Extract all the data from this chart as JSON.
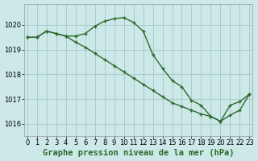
{
  "series1": {
    "x": [
      0,
      1,
      2,
      3,
      4,
      5,
      6,
      7,
      8,
      9,
      10,
      11,
      12,
      13,
      14,
      15,
      16,
      17,
      18,
      19,
      20,
      21,
      22,
      23
    ],
    "y": [
      1019.5,
      1019.5,
      1019.75,
      1019.65,
      1019.55,
      1019.55,
      1019.65,
      1019.95,
      1020.15,
      1020.25,
      1020.3,
      1020.1,
      1019.75,
      1018.8,
      1018.25,
      1017.75,
      1017.5,
      1016.95,
      1016.75,
      1016.3,
      1016.1,
      1016.75,
      1016.9,
      1017.2
    ]
  },
  "series2": {
    "x": [
      0,
      1,
      2,
      3,
      4,
      5,
      6,
      7,
      8,
      9,
      10,
      11,
      12,
      13,
      14,
      15,
      16,
      17,
      18,
      19,
      20,
      21,
      22,
      23
    ],
    "y": [
      1019.5,
      1019.5,
      1019.75,
      1019.65,
      1019.55,
      1019.3,
      1019.1,
      1018.85,
      1018.6,
      1018.35,
      1018.1,
      1017.85,
      1017.6,
      1017.35,
      1017.1,
      1016.85,
      1016.7,
      1016.55,
      1016.4,
      1016.3,
      1016.1,
      1016.35,
      1016.55,
      1017.2
    ]
  },
  "line_color": "#2d6a2d",
  "bg_color": "#cce8e8",
  "grid_color": "#aacccc",
  "xlabel": "Graphe pression niveau de la mer (hPa)",
  "ylim": [
    1015.5,
    1020.85
  ],
  "xlim": [
    -0.3,
    23.3
  ],
  "yticks": [
    1016,
    1017,
    1018,
    1019,
    1020
  ],
  "xticks": [
    0,
    1,
    2,
    3,
    4,
    5,
    6,
    7,
    8,
    9,
    10,
    11,
    12,
    13,
    14,
    15,
    16,
    17,
    18,
    19,
    20,
    21,
    22,
    23
  ],
  "xlabel_fontsize": 7.5,
  "tick_fontsize": 6.0,
  "marker_size": 3.5,
  "line_width": 1.0
}
